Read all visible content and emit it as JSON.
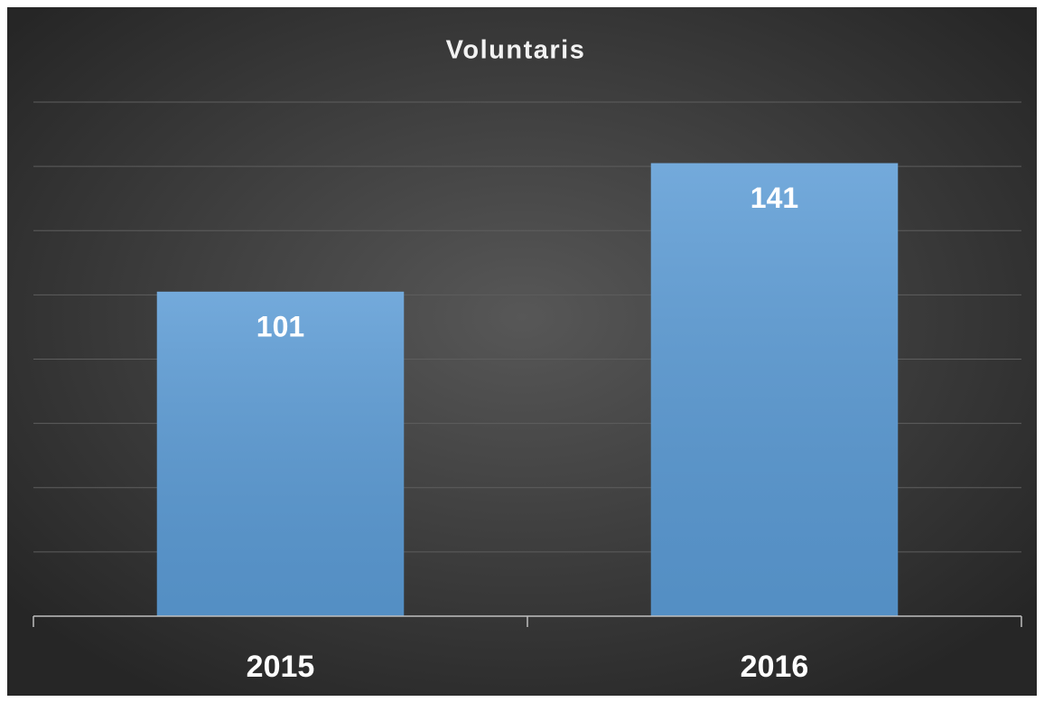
{
  "chart_data": {
    "type": "bar",
    "title": "Voluntaris",
    "categories": [
      "2015",
      "2016"
    ],
    "values": [
      101,
      141
    ],
    "color": "#5b9bd5",
    "ylim": [
      0,
      160
    ],
    "yticks": [
      0,
      20,
      40,
      60,
      80,
      100,
      120,
      140,
      160
    ],
    "grid": true
  }
}
